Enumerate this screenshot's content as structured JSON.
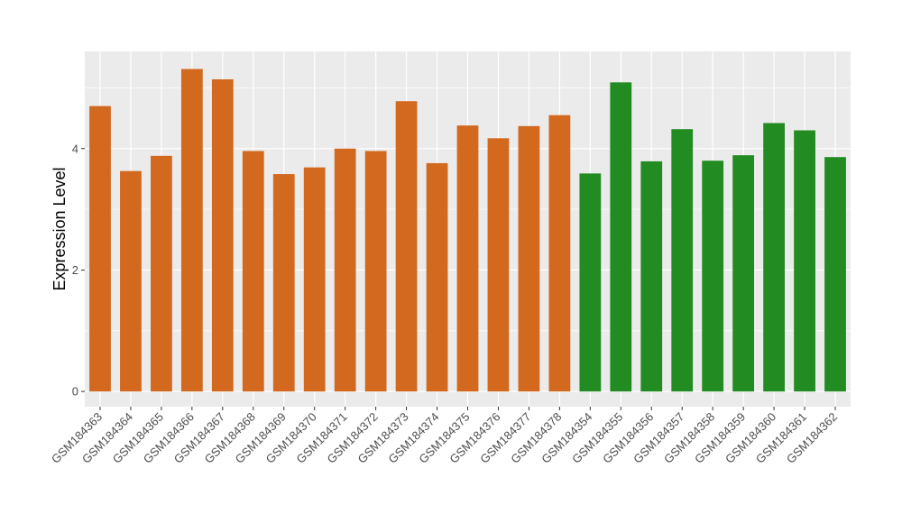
{
  "chart_data": {
    "type": "bar",
    "ylabel": "Expression Level",
    "xlabel": "",
    "ylim": [
      -0.25,
      5.6
    ],
    "yticks": [
      0,
      2,
      4
    ],
    "grid": true,
    "categories": [
      "GSM184363",
      "GSM184364",
      "GSM184365",
      "GSM184366",
      "GSM184367",
      "GSM184368",
      "GSM184369",
      "GSM184370",
      "GSM184371",
      "GSM184372",
      "GSM184373",
      "GSM184374",
      "GSM184375",
      "GSM184376",
      "GSM184377",
      "GSM184378",
      "GSM184354",
      "GSM184355",
      "GSM184356",
      "GSM184357",
      "GSM184358",
      "GSM184359",
      "GSM184360",
      "GSM184361",
      "GSM184362"
    ],
    "values": [
      4.7,
      3.63,
      3.88,
      5.31,
      5.14,
      3.96,
      3.58,
      3.69,
      4.0,
      3.96,
      4.78,
      3.76,
      4.38,
      4.17,
      4.37,
      4.55,
      3.59,
      5.09,
      3.79,
      4.32,
      3.8,
      3.89,
      4.42,
      4.3,
      3.86
    ],
    "groups": [
      0,
      0,
      0,
      0,
      0,
      0,
      0,
      0,
      0,
      0,
      0,
      0,
      0,
      0,
      0,
      0,
      1,
      1,
      1,
      1,
      1,
      1,
      1,
      1,
      1
    ],
    "colors": [
      "#d2691e",
      "#228b22"
    ],
    "panel_color": "#ebebeb",
    "grid_color": "#ffffff"
  }
}
